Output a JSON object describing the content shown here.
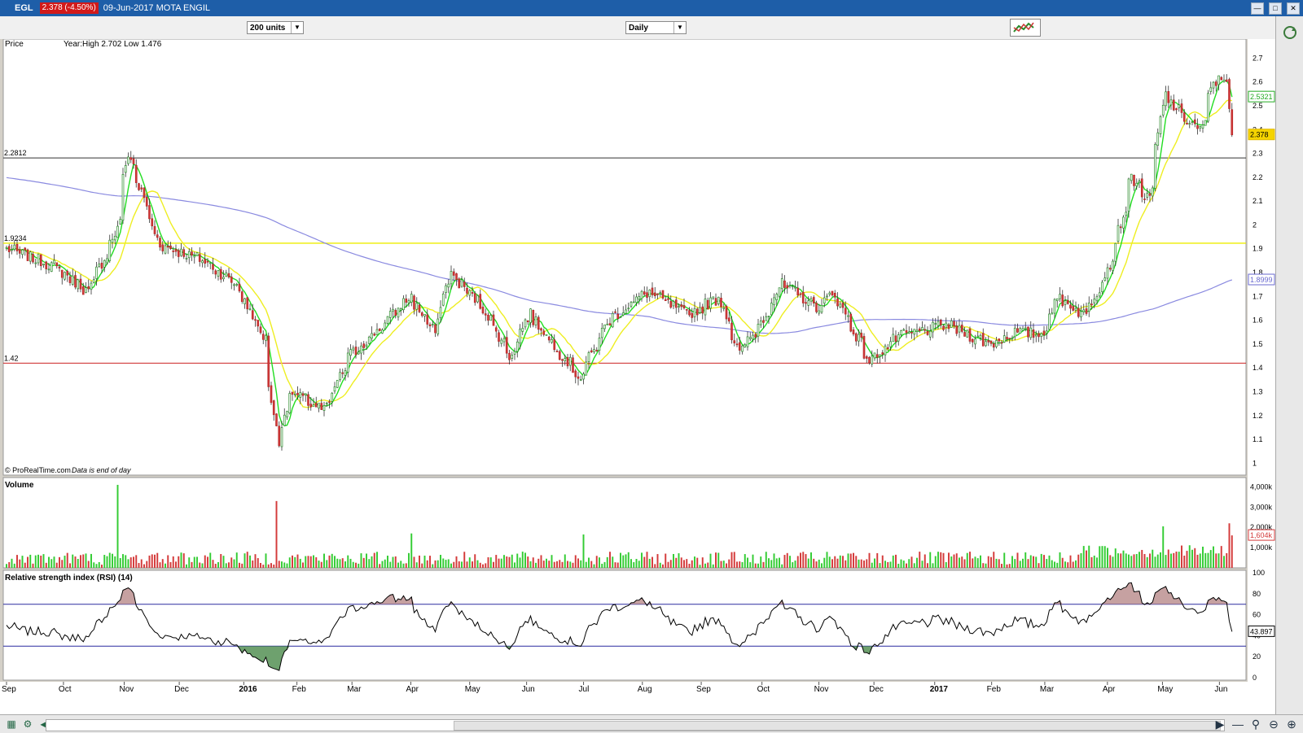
{
  "window": {
    "symbol": "EGL",
    "price_badge": "2.378 (-4.50%)",
    "date_name": "09-Jun-2017 MOTA ENGIL"
  },
  "toolbar": {
    "units": "200 units",
    "period": "Daily"
  },
  "panels": {
    "price": {
      "label": "Price",
      "info": "Year:High 2.702 Low 1.476",
      "footer": "© ProRealTime.com",
      "footer_note": "Data is end of day"
    },
    "volume": {
      "label": "Volume"
    },
    "rsi": {
      "label": "Relative strength index (RSI) (14)"
    }
  },
  "colors": {
    "up": "#33cc33",
    "down": "#d43a3a",
    "ma_fast": "#22dd22",
    "ma_slow": "#eeee22",
    "ma_long": "#8a8ae0",
    "resistance": "#333333",
    "support": "#cc2222",
    "horizontal_yellow": "#eeee00"
  },
  "chart_data": [
    {
      "type": "candlestick",
      "panel": "price",
      "ylim": [
        0.95,
        2.78
      ],
      "yticks": [
        "2.7",
        "2.6",
        "2.5",
        "2.4",
        "2.3",
        "2.2",
        "2.1",
        "2",
        "1.9",
        "1.8",
        "1.7",
        "1.6",
        "1.5",
        "1.4",
        "1.3",
        "1.2",
        "1.1",
        "1"
      ],
      "x_labels": [
        "Sep",
        "Oct",
        "Nov",
        "Dec",
        "2016",
        "Feb",
        "Mar",
        "Apr",
        "May",
        "Jun",
        "Jul",
        "Aug",
        "Sep",
        "Oct",
        "Nov",
        "Dec",
        "2017",
        "Feb",
        "Mar",
        "Apr",
        "May",
        "Jun"
      ],
      "anchors": [
        {
          "date": "2015-09-01",
          "close": 1.9
        },
        {
          "date": "2015-09-25",
          "close": 1.83
        },
        {
          "date": "2015-10-14",
          "close": 1.72
        },
        {
          "date": "2015-10-29",
          "close": 1.98
        },
        {
          "date": "2015-11-04",
          "close": 2.3
        },
        {
          "date": "2015-11-20",
          "close": 1.92
        },
        {
          "date": "2015-12-14",
          "close": 1.85
        },
        {
          "date": "2015-12-31",
          "close": 1.75
        },
        {
          "date": "2016-01-15",
          "close": 1.52
        },
        {
          "date": "2016-01-22",
          "close": 1.08
        },
        {
          "date": "2016-01-29",
          "close": 1.3
        },
        {
          "date": "2016-02-09",
          "close": 1.25
        },
        {
          "date": "2016-02-16",
          "close": 1.22
        },
        {
          "date": "2016-02-29",
          "close": 1.45
        },
        {
          "date": "2016-03-14",
          "close": 1.55
        },
        {
          "date": "2016-04-01",
          "close": 1.7
        },
        {
          "date": "2016-04-14",
          "close": 1.55
        },
        {
          "date": "2016-04-22",
          "close": 1.8
        },
        {
          "date": "2016-05-10",
          "close": 1.65
        },
        {
          "date": "2016-05-24",
          "close": 1.45
        },
        {
          "date": "2016-06-03",
          "close": 1.63
        },
        {
          "date": "2016-06-24",
          "close": 1.42
        },
        {
          "date": "2016-06-30",
          "close": 1.36
        },
        {
          "date": "2016-07-15",
          "close": 1.6
        },
        {
          "date": "2016-08-05",
          "close": 1.72
        },
        {
          "date": "2016-08-26",
          "close": 1.62
        },
        {
          "date": "2016-09-12",
          "close": 1.7
        },
        {
          "date": "2016-09-22",
          "close": 1.46
        },
        {
          "date": "2016-10-03",
          "close": 1.58
        },
        {
          "date": "2016-10-14",
          "close": 1.75
        },
        {
          "date": "2016-11-04",
          "close": 1.65
        },
        {
          "date": "2016-11-11",
          "close": 1.72
        },
        {
          "date": "2016-11-30",
          "close": 1.43
        },
        {
          "date": "2016-12-15",
          "close": 1.53
        },
        {
          "date": "2017-01-10",
          "close": 1.58
        },
        {
          "date": "2017-02-02",
          "close": 1.5
        },
        {
          "date": "2017-02-15",
          "close": 1.55
        },
        {
          "date": "2017-03-01",
          "close": 1.54
        },
        {
          "date": "2017-03-10",
          "close": 1.7
        },
        {
          "date": "2017-03-24",
          "close": 1.62
        },
        {
          "date": "2017-04-07",
          "close": 1.85
        },
        {
          "date": "2017-04-18",
          "close": 2.2
        },
        {
          "date": "2017-04-27",
          "close": 2.1
        },
        {
          "date": "2017-05-05",
          "close": 2.55
        },
        {
          "date": "2017-05-15",
          "close": 2.45
        },
        {
          "date": "2017-05-25",
          "close": 2.4
        },
        {
          "date": "2017-05-31",
          "close": 2.6
        },
        {
          "date": "2017-06-07",
          "close": 2.62
        },
        {
          "date": "2017-06-09",
          "close": 2.378
        }
      ],
      "horizontal_lines": [
        {
          "label": "2.2812",
          "value": 2.2812
        },
        {
          "label": "1.9234",
          "value": 1.9234
        },
        {
          "label": "1.42",
          "value": 1.42
        }
      ],
      "last_values": {
        "ma_fast": "2.5321",
        "last": "2.378",
        "ma_long": "1.8999"
      },
      "moving_averages": [
        5,
        14,
        200
      ]
    },
    {
      "type": "bar",
      "panel": "volume",
      "ylim": [
        0,
        4300
      ],
      "yticks": [
        "4,000k",
        "3,000k",
        "2,000k",
        "1,000k"
      ],
      "last_label": "1,604k",
      "spikes": [
        {
          "date": "2015-10-29",
          "value": 4100
        },
        {
          "date": "2016-01-21",
          "value": 3300
        },
        {
          "date": "2016-04-01",
          "value": 1700
        },
        {
          "date": "2016-07-01",
          "value": 1650
        },
        {
          "date": "2017-05-04",
          "value": 2050
        },
        {
          "date": "2017-06-08",
          "value": 2200
        }
      ]
    },
    {
      "type": "line",
      "panel": "rsi",
      "ylim": [
        0,
        100
      ],
      "yticks": [
        "100",
        "80",
        "60",
        "40",
        "20",
        "0"
      ],
      "overbought": 70,
      "oversold": 30,
      "last_label": "43.897"
    }
  ]
}
